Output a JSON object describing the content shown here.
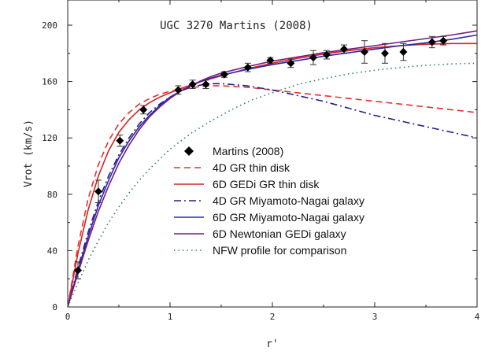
{
  "chart_data": {
    "type": "line",
    "title": "UGC 3270 Martins (2008)",
    "xlabel": "r'",
    "ylabel": "Vrot (km/s)",
    "xlim": [
      0,
      4
    ],
    "ylim": [
      0,
      210
    ],
    "xticks": [
      "0",
      "1",
      "2",
      "3",
      "4"
    ],
    "yticks": [
      "0",
      "40",
      "80",
      "120",
      "160",
      "200"
    ],
    "grid": false,
    "legend_position": "center-left",
    "observations": {
      "name": "Martins (2008)",
      "marker": "diamond",
      "color": "#000000",
      "points": [
        {
          "x": 0.1,
          "y": 26,
          "err": 6
        },
        {
          "x": 0.3,
          "y": 82,
          "err": 8
        },
        {
          "x": 0.51,
          "y": 118,
          "err": 4
        },
        {
          "x": 0.74,
          "y": 140,
          "err": 3
        },
        {
          "x": 1.08,
          "y": 154,
          "err": 3
        },
        {
          "x": 1.22,
          "y": 158,
          "err": 3
        },
        {
          "x": 1.35,
          "y": 158,
          "err": 3
        },
        {
          "x": 1.53,
          "y": 165,
          "err": 2
        },
        {
          "x": 1.76,
          "y": 170,
          "err": 3
        },
        {
          "x": 1.98,
          "y": 175,
          "err": 2
        },
        {
          "x": 2.18,
          "y": 173,
          "err": 3
        },
        {
          "x": 2.4,
          "y": 177,
          "err": 5
        },
        {
          "x": 2.53,
          "y": 179,
          "err": 3
        },
        {
          "x": 2.7,
          "y": 183,
          "err": 3
        },
        {
          "x": 2.9,
          "y": 181,
          "err": 8
        },
        {
          "x": 3.1,
          "y": 180,
          "err": 7
        },
        {
          "x": 3.28,
          "y": 181,
          "err": 6
        },
        {
          "x": 3.56,
          "y": 188,
          "err": 4
        },
        {
          "x": 3.67,
          "y": 189,
          "err": 3
        }
      ]
    },
    "series": [
      {
        "name": "4D GR thin disk",
        "color": "#e8302c",
        "dash": "8,5",
        "x": [
          0,
          0.1,
          0.2,
          0.3,
          0.4,
          0.5,
          0.6,
          0.7,
          0.8,
          0.9,
          1.0,
          1.1,
          1.2,
          1.3,
          1.4,
          1.5,
          1.75,
          2.0,
          2.25,
          2.5,
          2.75,
          3.0,
          3.25,
          3.5,
          3.75,
          4.0
        ],
        "y": [
          0,
          43,
          77,
          101,
          118,
          130,
          138,
          144,
          148,
          151,
          153,
          154.5,
          155.5,
          156.5,
          157,
          157,
          156,
          154,
          152,
          150,
          148,
          146,
          144,
          142,
          140,
          138
        ]
      },
      {
        "name": "6D GEDi GR thin disk",
        "color": "#d62020",
        "dash": "",
        "x": [
          0,
          0.1,
          0.2,
          0.3,
          0.4,
          0.5,
          0.6,
          0.7,
          0.8,
          0.9,
          1.0,
          1.1,
          1.2,
          1.3,
          1.4,
          1.5,
          1.75,
          2.0,
          2.25,
          2.5,
          2.75,
          3.0,
          3.25,
          3.5,
          3.75,
          4.0
        ],
        "y": [
          0,
          38,
          69,
          93,
          111,
          124,
          133,
          140,
          145,
          149,
          152,
          155,
          157.5,
          160,
          162,
          164,
          169,
          173,
          176.5,
          179.5,
          182,
          184,
          185.5,
          186.5,
          187,
          187
        ]
      },
      {
        "name": "4D GR Miyamoto-Nagai galaxy",
        "color": "#1f1f8f",
        "dash": "9,4,2,4",
        "x": [
          0,
          0.1,
          0.2,
          0.3,
          0.4,
          0.5,
          0.6,
          0.7,
          0.8,
          0.9,
          1.0,
          1.1,
          1.2,
          1.3,
          1.4,
          1.5,
          1.75,
          2.0,
          2.25,
          2.5,
          2.75,
          3.0,
          3.25,
          3.5,
          3.75,
          4.0
        ],
        "y": [
          0,
          28,
          53,
          75,
          93,
          108,
          120,
          130,
          138,
          144,
          149,
          153,
          156,
          157.5,
          158.5,
          158.5,
          157,
          154,
          150,
          146,
          141,
          136,
          132,
          128,
          124,
          120
        ]
      },
      {
        "name": "6D GR Miyamoto-Nagai galaxy",
        "color": "#2a2ab0",
        "dash": "",
        "x": [
          0,
          0.1,
          0.2,
          0.3,
          0.4,
          0.5,
          0.6,
          0.7,
          0.8,
          0.9,
          1.0,
          1.1,
          1.2,
          1.3,
          1.4,
          1.5,
          1.75,
          2.0,
          2.25,
          2.5,
          2.75,
          3.0,
          3.25,
          3.5,
          3.75,
          4.0
        ],
        "y": [
          0,
          26,
          50,
          72,
          90,
          106,
          118,
          128,
          136,
          143,
          149,
          153,
          157,
          160,
          162.5,
          164.5,
          168.5,
          172,
          175,
          178,
          180.5,
          183,
          185.5,
          187.5,
          190,
          193
        ]
      },
      {
        "name": "6D Newtonian GEDi galaxy",
        "color": "#7a1a7a",
        "dash": "",
        "x": [
          0,
          0.1,
          0.2,
          0.3,
          0.4,
          0.5,
          0.6,
          0.7,
          0.8,
          0.9,
          1.0,
          1.1,
          1.2,
          1.3,
          1.4,
          1.5,
          1.75,
          2.0,
          2.25,
          2.5,
          2.75,
          3.0,
          3.25,
          3.5,
          3.75,
          4.0
        ],
        "y": [
          0,
          24,
          47,
          68,
          86,
          102,
          115,
          126,
          135,
          142,
          148,
          153,
          157,
          160.5,
          163.5,
          166,
          170.5,
          174.5,
          177.5,
          180.5,
          183,
          185.5,
          188,
          190.5,
          193,
          196
        ]
      },
      {
        "name": "NFW profile for comparison",
        "color": "#2e7d6e",
        "dash": "1.5,4",
        "x": [
          0,
          0.1,
          0.2,
          0.3,
          0.4,
          0.5,
          0.6,
          0.7,
          0.8,
          0.9,
          1.0,
          1.2,
          1.4,
          1.6,
          1.8,
          2.0,
          2.25,
          2.5,
          2.75,
          3.0,
          3.25,
          3.5,
          3.75,
          4.0
        ],
        "y": [
          0,
          17,
          33,
          47,
          60,
          71,
          81,
          90,
          98,
          105,
          112,
          123,
          132,
          140,
          147,
          152,
          158,
          162,
          165.5,
          168,
          170,
          171.5,
          172.5,
          173
        ]
      }
    ]
  }
}
